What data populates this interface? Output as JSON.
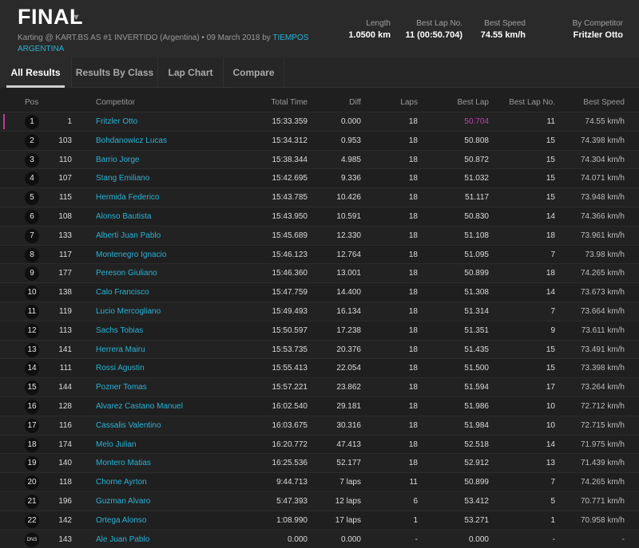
{
  "header": {
    "title": "FINAL",
    "subtitle_prefix": "Karting @ KART.BS AS #1 INVERTIDO (Argentina) • 09 March 2018 by ",
    "subtitle_link": "TIEMPOS ARGENTINA",
    "stats": {
      "length_label": "Length",
      "length_value": "1.0500 km",
      "best_lap_no_label": "Best Lap No.",
      "best_lap_no_value": "11 (00:50.704)",
      "best_speed_label": "Best Speed",
      "best_speed_value": "74.55 km/h",
      "by_competitor_label": "By Competitor",
      "by_competitor_value": "Fritzler Otto"
    }
  },
  "tabs": [
    {
      "label": "All Results",
      "active": true
    },
    {
      "label": "Results By Class",
      "active": false
    },
    {
      "label": "Lap Chart",
      "active": false
    },
    {
      "label": "Compare",
      "active": false
    }
  ],
  "table": {
    "headers": {
      "pos": "Pos",
      "competitor": "Competitor",
      "total_time": "Total Time",
      "diff": "Diff",
      "laps": "Laps",
      "best_lap": "Best Lap",
      "best_lap_no": "Best Lap No.",
      "best_speed": "Best Speed"
    },
    "rows": [
      {
        "pos": "1",
        "num": "1",
        "name": "Fritzler Otto",
        "total": "15:33.359",
        "diff": "0.000",
        "laps": "18",
        "best": "50.704",
        "best_no": "11",
        "speed": "74.55 km/h"
      },
      {
        "pos": "2",
        "num": "103",
        "name": "Bohdanowicz Lucas",
        "total": "15:34.312",
        "diff": "0.953",
        "laps": "18",
        "best": "50.808",
        "best_no": "15",
        "speed": "74.398 km/h"
      },
      {
        "pos": "3",
        "num": "110",
        "name": "Barrio Jorge",
        "total": "15:38.344",
        "diff": "4.985",
        "laps": "18",
        "best": "50.872",
        "best_no": "15",
        "speed": "74.304 km/h"
      },
      {
        "pos": "4",
        "num": "107",
        "name": "Stang Emiliano",
        "total": "15:42.695",
        "diff": "9.336",
        "laps": "18",
        "best": "51.032",
        "best_no": "15",
        "speed": "74.071 km/h"
      },
      {
        "pos": "5",
        "num": "115",
        "name": "Hermida Federico",
        "total": "15:43.785",
        "diff": "10.426",
        "laps": "18",
        "best": "51.117",
        "best_no": "15",
        "speed": "73.948 km/h"
      },
      {
        "pos": "6",
        "num": "108",
        "name": "Alonso Bautista",
        "total": "15:43.950",
        "diff": "10.591",
        "laps": "18",
        "best": "50.830",
        "best_no": "14",
        "speed": "74.366 km/h"
      },
      {
        "pos": "7",
        "num": "133",
        "name": "Alberti Juan Pablo",
        "total": "15:45.689",
        "diff": "12.330",
        "laps": "18",
        "best": "51.108",
        "best_no": "18",
        "speed": "73.961 km/h"
      },
      {
        "pos": "8",
        "num": "117",
        "name": "Montenegro Ignacio",
        "total": "15:46.123",
        "diff": "12.764",
        "laps": "18",
        "best": "51.095",
        "best_no": "7",
        "speed": "73.98 km/h"
      },
      {
        "pos": "9",
        "num": "177",
        "name": "Pereson Giuliano",
        "total": "15:46.360",
        "diff": "13.001",
        "laps": "18",
        "best": "50.899",
        "best_no": "18",
        "speed": "74.265 km/h"
      },
      {
        "pos": "10",
        "num": "138",
        "name": "Calo Francisco",
        "total": "15:47.759",
        "diff": "14.400",
        "laps": "18",
        "best": "51.308",
        "best_no": "14",
        "speed": "73.673 km/h"
      },
      {
        "pos": "11",
        "num": "119",
        "name": "Lucio Mercogliano",
        "total": "15:49.493",
        "diff": "16.134",
        "laps": "18",
        "best": "51.314",
        "best_no": "7",
        "speed": "73.664 km/h"
      },
      {
        "pos": "12",
        "num": "113",
        "name": "Sachs Tobias",
        "total": "15:50.597",
        "diff": "17.238",
        "laps": "18",
        "best": "51.351",
        "best_no": "9",
        "speed": "73.611 km/h"
      },
      {
        "pos": "13",
        "num": "141",
        "name": "Herrera Mairu",
        "total": "15:53.735",
        "diff": "20.376",
        "laps": "18",
        "best": "51.435",
        "best_no": "15",
        "speed": "73.491 km/h"
      },
      {
        "pos": "14",
        "num": "111",
        "name": "Rossi Agustin",
        "total": "15:55.413",
        "diff": "22.054",
        "laps": "18",
        "best": "51.500",
        "best_no": "15",
        "speed": "73.398 km/h"
      },
      {
        "pos": "15",
        "num": "144",
        "name": "Pozner Tomas",
        "total": "15:57.221",
        "diff": "23.862",
        "laps": "18",
        "best": "51.594",
        "best_no": "17",
        "speed": "73.264 km/h"
      },
      {
        "pos": "16",
        "num": "128",
        "name": "Alvarez Castano Manuel",
        "total": "16:02.540",
        "diff": "29.181",
        "laps": "18",
        "best": "51.986",
        "best_no": "10",
        "speed": "72.712 km/h"
      },
      {
        "pos": "17",
        "num": "116",
        "name": "Cassalis Valentino",
        "total": "16:03.675",
        "diff": "30.316",
        "laps": "18",
        "best": "51.984",
        "best_no": "10",
        "speed": "72.715 km/h"
      },
      {
        "pos": "18",
        "num": "174",
        "name": "Melo Julian",
        "total": "16:20.772",
        "diff": "47.413",
        "laps": "18",
        "best": "52.518",
        "best_no": "14",
        "speed": "71.975 km/h"
      },
      {
        "pos": "19",
        "num": "140",
        "name": "Montero Matias",
        "total": "16:25.536",
        "diff": "52.177",
        "laps": "18",
        "best": "52.912",
        "best_no": "13",
        "speed": "71.439 km/h"
      },
      {
        "pos": "20",
        "num": "118",
        "name": "Chorne Ayrton",
        "total": "9:44.713",
        "diff": "7 laps",
        "laps": "11",
        "best": "50.899",
        "best_no": "7",
        "speed": "74.265 km/h"
      },
      {
        "pos": "21",
        "num": "196",
        "name": "Guzman Alvaro",
        "total": "5:47.393",
        "diff": "12 laps",
        "laps": "6",
        "best": "53.412",
        "best_no": "5",
        "speed": "70.771 km/h"
      },
      {
        "pos": "22",
        "num": "142",
        "name": "Ortega Alonso",
        "total": "1:08.990",
        "diff": "17 laps",
        "laps": "1",
        "best": "53.271",
        "best_no": "1",
        "speed": "70.958 km/h"
      },
      {
        "pos": "DNS",
        "num": "143",
        "name": "Ale Juan Pablo",
        "total": "0.000",
        "diff": "0.000",
        "laps": "-",
        "best": "0.000",
        "best_no": "-",
        "speed": "-"
      }
    ]
  },
  "colors": {
    "accent_link": "#29b3d6",
    "best_lap_highlight": "#c03fb0",
    "background": "#1f1f1f"
  }
}
